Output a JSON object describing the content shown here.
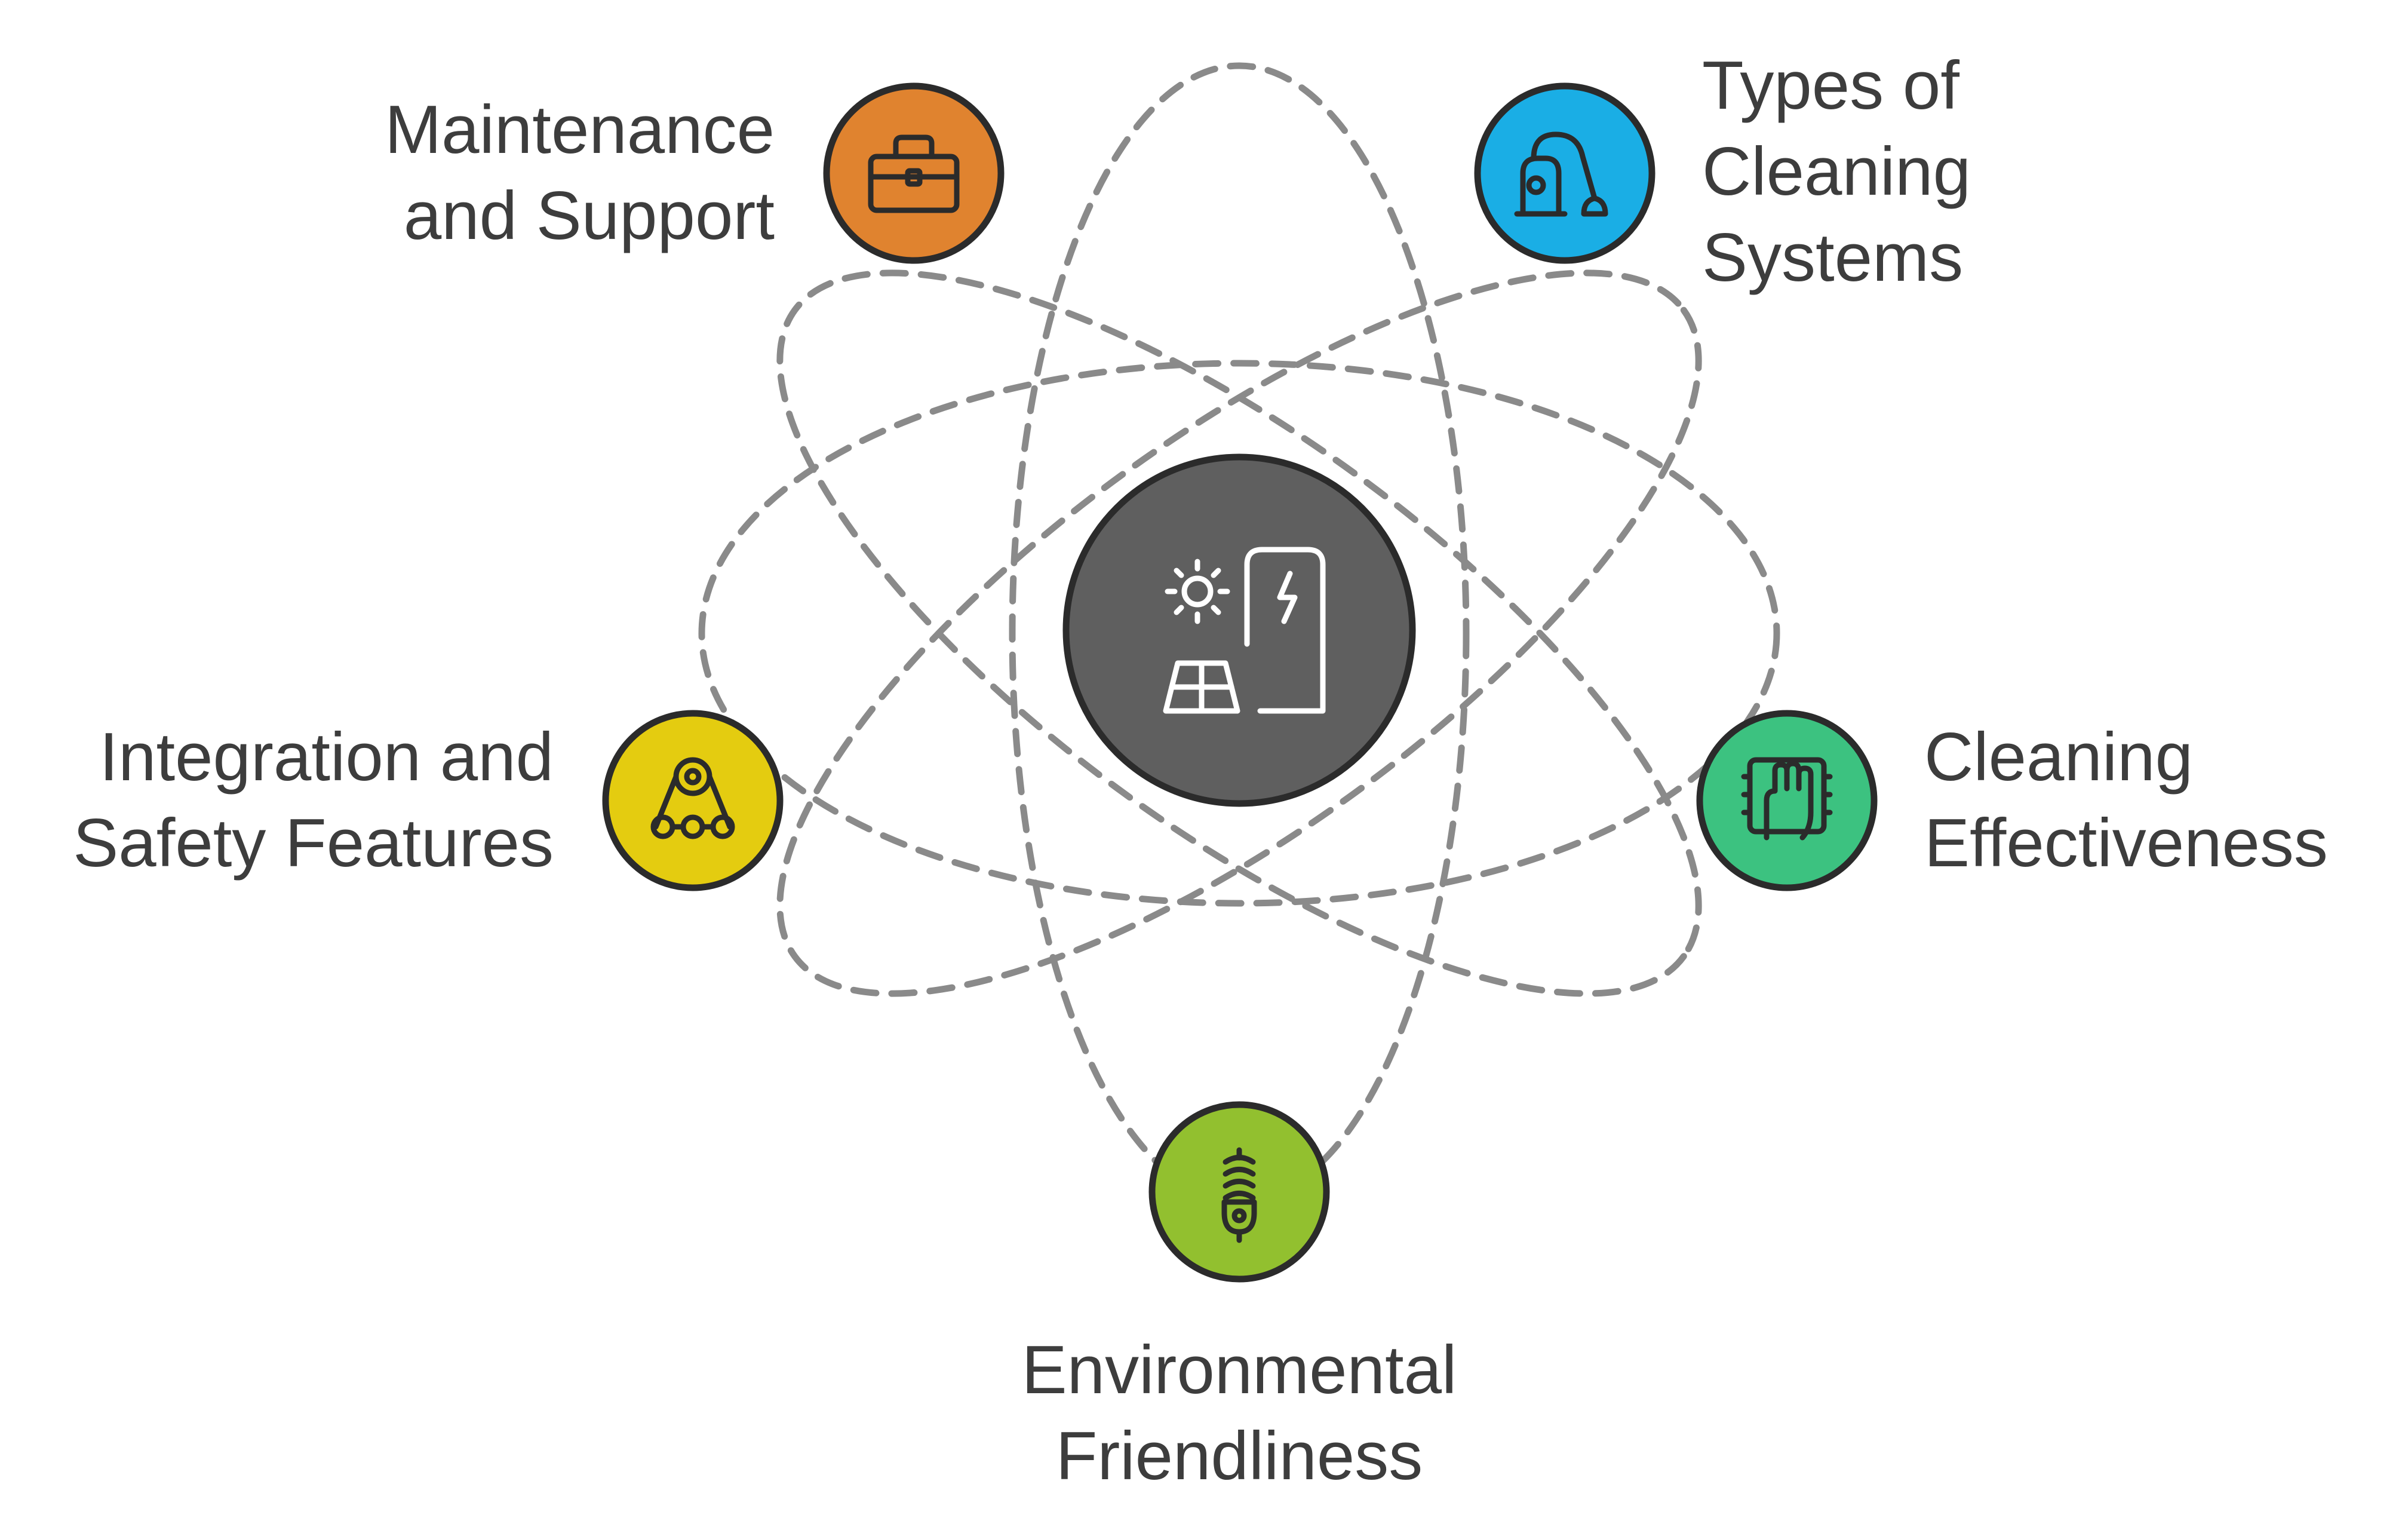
{
  "center": {
    "icon": "solar-charging-station-icon",
    "fill": "#5f5f5f"
  },
  "nodes": [
    {
      "id": "maintenance",
      "lines": [
        "Maintenance",
        "and Support"
      ],
      "icon": "toolbox-icon",
      "fill": "#e0832f"
    },
    {
      "id": "types",
      "lines": [
        "Types of",
        "Cleaning",
        "Systems"
      ],
      "icon": "vacuum-cleaner-icon",
      "fill": "#1aaee5"
    },
    {
      "id": "integration",
      "lines": [
        "Integration and",
        "Safety Features"
      ],
      "icon": "conveyor-gear-icon",
      "fill": "#e4cc10"
    },
    {
      "id": "effectiveness",
      "lines": [
        "Cleaning",
        "Effectiveness"
      ],
      "icon": "hand-wiping-icon",
      "fill": "#3cc280"
    },
    {
      "id": "environmental",
      "lines": [
        "Environmental",
        "Friendliness"
      ],
      "icon": "eco-bulb-icon",
      "fill": "#92c02f"
    }
  ],
  "colors": {
    "orbit": "#8a8a8a",
    "outline": "#2b2b2b",
    "text": "#3d3d3d"
  }
}
